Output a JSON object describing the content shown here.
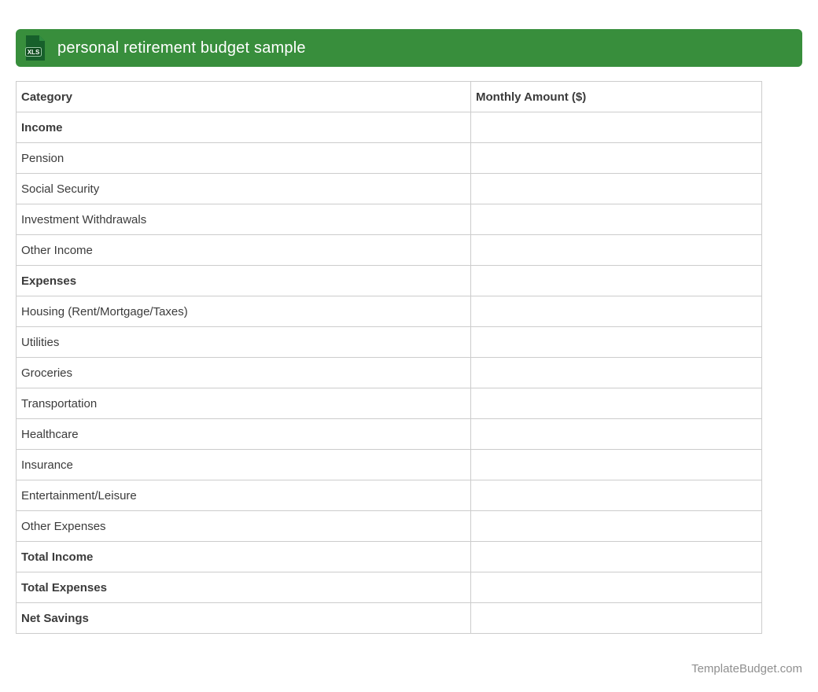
{
  "banner": {
    "icon_label": "XLS",
    "title": "personal retirement budget sample"
  },
  "table": {
    "columns": [
      "Category",
      "Monthly Amount ($)"
    ],
    "rows": [
      {
        "label": "Income",
        "amount": "",
        "bold": true
      },
      {
        "label": "Pension",
        "amount": "",
        "bold": false
      },
      {
        "label": "Social Security",
        "amount": "",
        "bold": false
      },
      {
        "label": "Investment Withdrawals",
        "amount": "",
        "bold": false
      },
      {
        "label": "Other Income",
        "amount": "",
        "bold": false
      },
      {
        "label": "Expenses",
        "amount": "",
        "bold": true
      },
      {
        "label": "Housing (Rent/Mortgage/Taxes)",
        "amount": "",
        "bold": false
      },
      {
        "label": "Utilities",
        "amount": "",
        "bold": false
      },
      {
        "label": "Groceries",
        "amount": "",
        "bold": false
      },
      {
        "label": "Transportation",
        "amount": "",
        "bold": false
      },
      {
        "label": "Healthcare",
        "amount": "",
        "bold": false
      },
      {
        "label": "Insurance",
        "amount": "",
        "bold": false
      },
      {
        "label": "Entertainment/Leisure",
        "amount": "",
        "bold": false
      },
      {
        "label": "Other Expenses",
        "amount": "",
        "bold": false
      },
      {
        "label": "Total Income",
        "amount": "",
        "bold": true
      },
      {
        "label": "Total Expenses",
        "amount": "",
        "bold": true
      },
      {
        "label": "Net Savings",
        "amount": "",
        "bold": true
      }
    ]
  },
  "footer": {
    "site": "TemplateBudget.com"
  },
  "colors": {
    "banner_green": "#388E3C",
    "icon_file_green": "#17602B",
    "icon_fold_green": "#2E8B3F",
    "icon_badge_green": "#0C4A1C",
    "icon_badge_outline": "#9CC7A6",
    "border": "#CCCCCC",
    "text": "#3B3B3B",
    "title_text": "#FFFFFF",
    "footer_text": "#8F8F8F"
  }
}
